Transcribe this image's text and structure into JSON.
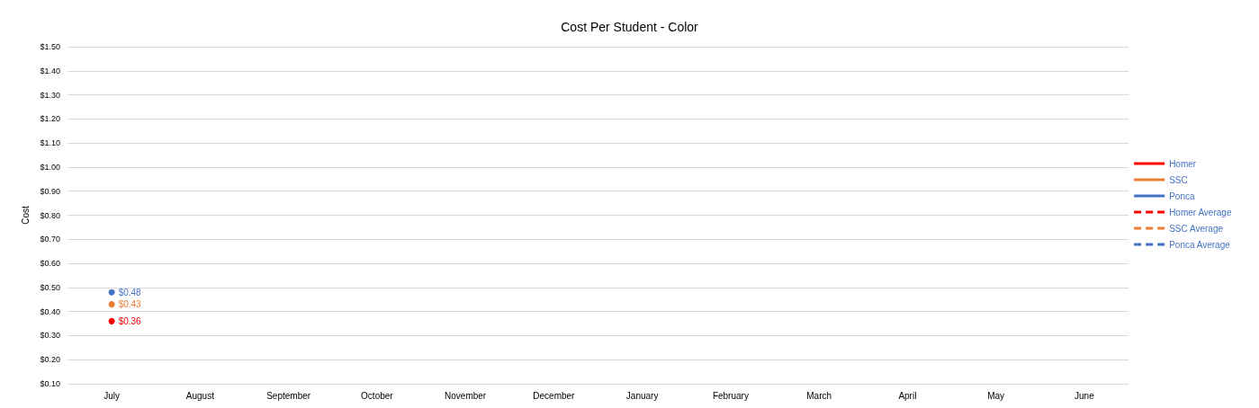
{
  "chart_data": {
    "type": "line",
    "title": "Cost Per Student - Color",
    "ylabel": "Cost",
    "categories": [
      "July",
      "August",
      "September",
      "October",
      "November",
      "December",
      "January",
      "February",
      "March",
      "April",
      "May",
      "June"
    ],
    "series": [
      {
        "name": "Homer",
        "color": "#ff0000",
        "line_style": "solid",
        "values": [
          0.36,
          null,
          null,
          null,
          null,
          null,
          null,
          null,
          null,
          null,
          null,
          null
        ],
        "value_labels": [
          "$0.36",
          null,
          null,
          null,
          null,
          null,
          null,
          null,
          null,
          null,
          null,
          null
        ]
      },
      {
        "name": "SSC",
        "color": "#ed7d31",
        "line_style": "solid",
        "values": [
          0.43,
          null,
          null,
          null,
          null,
          null,
          null,
          null,
          null,
          null,
          null,
          null
        ],
        "value_labels": [
          "$0.43",
          null,
          null,
          null,
          null,
          null,
          null,
          null,
          null,
          null,
          null,
          null
        ]
      },
      {
        "name": "Ponca",
        "color": "#4472c4",
        "line_style": "solid",
        "values": [
          0.48,
          null,
          null,
          null,
          null,
          null,
          null,
          null,
          null,
          null,
          null,
          null
        ],
        "value_labels": [
          "$0.48",
          null,
          null,
          null,
          null,
          null,
          null,
          null,
          null,
          null,
          null,
          null
        ]
      },
      {
        "name": "Homer Average",
        "color": "#ff0000",
        "line_style": "dashed",
        "values": [
          null,
          null,
          null,
          null,
          null,
          null,
          null,
          null,
          null,
          null,
          null,
          null
        ]
      },
      {
        "name": "SSC Average",
        "color": "#ed7d31",
        "line_style": "dashed",
        "values": [
          null,
          null,
          null,
          null,
          null,
          null,
          null,
          null,
          null,
          null,
          null,
          null
        ]
      },
      {
        "name": "Ponca Average",
        "color": "#4472c4",
        "line_style": "dashed",
        "values": [
          null,
          null,
          null,
          null,
          null,
          null,
          null,
          null,
          null,
          null,
          null,
          null
        ]
      }
    ],
    "ylim": [
      0.1,
      1.5
    ],
    "yticks": [
      {
        "value": 0.1,
        "label": "$0.10"
      },
      {
        "value": 0.2,
        "label": "$0.20"
      },
      {
        "value": 0.3,
        "label": "$0.30"
      },
      {
        "value": 0.4,
        "label": "$0.40"
      },
      {
        "value": 0.5,
        "label": "$0.50"
      },
      {
        "value": 0.6,
        "label": "$0.60"
      },
      {
        "value": 0.7,
        "label": "$0.70"
      },
      {
        "value": 0.8,
        "label": "$0.80"
      },
      {
        "value": 0.9,
        "label": "$0.90"
      },
      {
        "value": 1.0,
        "label": "$1.00"
      },
      {
        "value": 1.1,
        "label": "$1.10"
      },
      {
        "value": 1.2,
        "label": "$1.20"
      },
      {
        "value": 1.3,
        "label": "$1.30"
      },
      {
        "value": 1.4,
        "label": "$1.40"
      },
      {
        "value": 1.5,
        "label": "$1.50"
      }
    ],
    "grid": "y",
    "legend": "right",
    "marker": "circle"
  }
}
